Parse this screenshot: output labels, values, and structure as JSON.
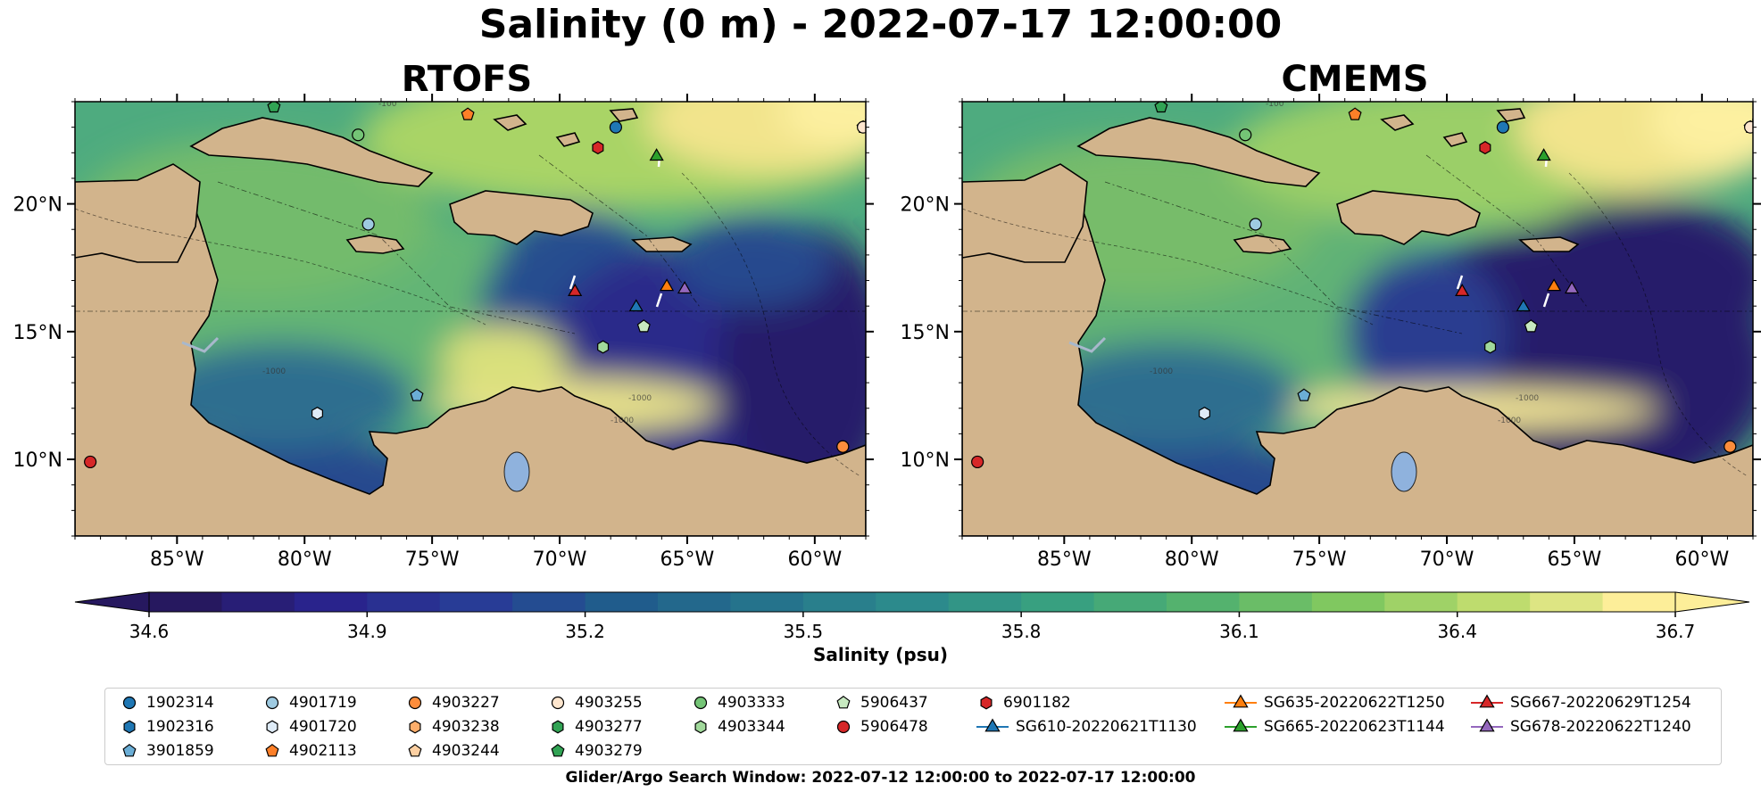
{
  "figure": {
    "title": "Salinity (0 m) - 2022-07-17 12:00:00",
    "footer": "Glider/Argo Search Window: 2022-07-12 12:00:00 to 2022-07-17 12:00:00"
  },
  "chart_data": [
    {
      "type": "heatmap",
      "title": "RTOFS",
      "map_projection": "plate carree",
      "extent_lon": [
        -89,
        -58
      ],
      "extent_lat": [
        7,
        24
      ],
      "x_ticks": [
        "85°W",
        "80°W",
        "75°W",
        "70°W",
        "65°W",
        "60°W"
      ],
      "x_tick_values": [
        -85,
        -80,
        -75,
        -70,
        -65,
        -60
      ],
      "y_ticks": [
        "10°N",
        "15°N",
        "20°N"
      ],
      "y_tick_values": [
        10,
        15,
        20
      ],
      "land_color": "#d2b48c",
      "low_salinity_region": "eastern Caribbean and Atlantic east of Lesser Antilles",
      "high_salinity_region": "northeast (north of Puerto Rico) and Venezuelan coast",
      "contour_labels": [
        "-100",
        "-1000",
        "-1000",
        "-1000"
      ],
      "markers": [
        {
          "id": "1902314",
          "lon": -67.8,
          "lat": 23.0
        },
        {
          "id": "1902316",
          "lon": -57.8,
          "lat": 23.2
        },
        {
          "id": "3901859",
          "lon": -75.6,
          "lat": 12.5
        },
        {
          "id": "4901719",
          "lon": -77.5,
          "lat": 19.2
        },
        {
          "id": "4901720",
          "lon": -79.5,
          "lat": 11.8
        },
        {
          "id": "4902113",
          "lon": -73.6,
          "lat": 23.5
        },
        {
          "id": "4903227",
          "lon": -58.9,
          "lat": 10.5
        },
        {
          "id": "4903244",
          "lon": -58.1,
          "lat": 23.0
        },
        {
          "id": "4903255",
          "lon": -58.1,
          "lat": 23.0
        },
        {
          "id": "4903279",
          "lon": -81.2,
          "lat": 23.8
        },
        {
          "id": "4903333",
          "lon": -77.9,
          "lat": 22.7
        },
        {
          "id": "4903344",
          "lon": -68.3,
          "lat": 14.4
        },
        {
          "id": "5906437",
          "lon": -66.7,
          "lat": 15.2
        },
        {
          "id": "5906478",
          "lon": -88.4,
          "lat": 9.9
        },
        {
          "id": "6901182",
          "lon": -68.5,
          "lat": 22.2
        },
        {
          "id": "SG610-20220621T1130",
          "lon": -67.0,
          "lat": 16.0
        },
        {
          "id": "SG635-20220622T1250",
          "lon": -65.8,
          "lat": 16.8
        },
        {
          "id": "SG665-20220623T1144",
          "lon": -66.2,
          "lat": 21.9
        },
        {
          "id": "SG667-20220629T1254",
          "lon": -69.4,
          "lat": 16.6
        },
        {
          "id": "SG678-20220622T1240",
          "lon": -65.1,
          "lat": 16.7
        }
      ]
    },
    {
      "type": "heatmap",
      "title": "CMEMS",
      "map_projection": "plate carree",
      "extent_lon": [
        -89,
        -58
      ],
      "extent_lat": [
        7,
        24
      ],
      "x_ticks": [
        "85°W",
        "80°W",
        "75°W",
        "70°W",
        "65°W",
        "60°W"
      ],
      "x_tick_values": [
        -85,
        -80,
        -75,
        -70,
        -65,
        -60
      ],
      "y_ticks": [
        "10°N",
        "15°N",
        "20°N"
      ],
      "y_tick_values": [
        10,
        15,
        20
      ],
      "land_color": "#d2b48c",
      "low_salinity_region": "large plume from Orinoco/Amazon covering eastern Caribbean",
      "high_salinity_region": "northeast Atlantic (north of Puerto Rico)",
      "contour_labels": [
        "-100",
        "-1000",
        "-1000",
        "-1000"
      ],
      "markers": "same as RTOFS"
    }
  ],
  "colorbar": {
    "label": "Salinity (psu)",
    "vmin": 34.6,
    "vmax": 36.7,
    "extend": "both",
    "ticks": [
      "34.6",
      "34.9",
      "35.2",
      "35.5",
      "35.8",
      "36.1",
      "36.4",
      "36.7"
    ],
    "colormap": "haline",
    "levels": 21
  },
  "legend": {
    "items": [
      {
        "label": "1902314",
        "marker": "circle",
        "color": "#1f77b4"
      },
      {
        "label": "1902316",
        "marker": "hexagon",
        "color": "#1f77b4"
      },
      {
        "label": "3901859",
        "marker": "pentagon",
        "color": "#6baed6"
      },
      {
        "label": "4901719",
        "marker": "circle",
        "color": "#9ecae1"
      },
      {
        "label": "4901720",
        "marker": "hexagon",
        "color": "#deebf7"
      },
      {
        "label": "4902113",
        "marker": "pentagon",
        "color": "#fd7f28"
      },
      {
        "label": "4903227",
        "marker": "circle",
        "color": "#fd8d3c"
      },
      {
        "label": "4903238",
        "marker": "hexagon",
        "color": "#fdae6b"
      },
      {
        "label": "4903244",
        "marker": "pentagon",
        "color": "#fdd0a2"
      },
      {
        "label": "4903255",
        "marker": "circle",
        "color": "#fee6ce"
      },
      {
        "label": "4903277",
        "marker": "hexagon",
        "color": "#31a354"
      },
      {
        "label": "4903279",
        "marker": "pentagon",
        "color": "#31a354"
      },
      {
        "label": "4903333",
        "marker": "circle",
        "color": "#74c476"
      },
      {
        "label": "4903344",
        "marker": "hexagon",
        "color": "#a1d99b"
      },
      {
        "label": "5906437",
        "marker": "pentagon",
        "color": "#c7e9c0"
      },
      {
        "label": "5906478",
        "marker": "circle",
        "color": "#d62728"
      },
      {
        "label": "6901182",
        "marker": "hexagon",
        "color": "#d62728"
      },
      {
        "label": "SG610-20220621T1130",
        "marker": "triangle-line",
        "color": "#1f77b4"
      },
      {
        "label": "SG635-20220622T1250",
        "marker": "triangle-line",
        "color": "#ff7f0e"
      },
      {
        "label": "SG665-20220623T1144",
        "marker": "triangle-line",
        "color": "#2ca02c"
      },
      {
        "label": "SG667-20220629T1254",
        "marker": "triangle-line",
        "color": "#d62728"
      },
      {
        "label": "SG678-20220622T1240",
        "marker": "triangle-line",
        "color": "#9467bd"
      }
    ]
  }
}
